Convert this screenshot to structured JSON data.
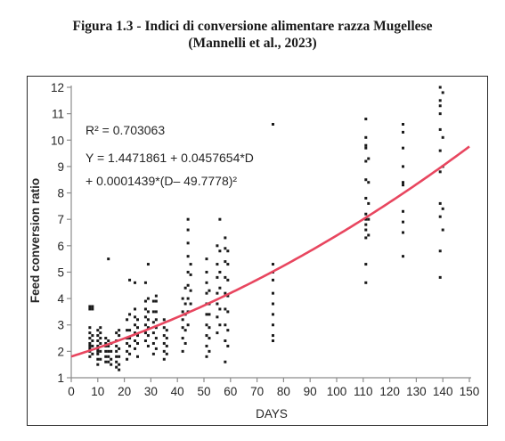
{
  "caption": {
    "line1": "Figura 1.3 - Indici di conversione alimentare razza Mugellese",
    "line2": "(Mannelli et al., 2023)"
  },
  "chart_data": {
    "type": "scatter",
    "title": "",
    "xlabel": "DAYS",
    "ylabel": "Feed conversion ratio",
    "xlim": [
      0,
      150
    ],
    "ylim": [
      1,
      12
    ],
    "xticks": [
      0,
      10,
      20,
      30,
      40,
      50,
      60,
      70,
      80,
      90,
      100,
      110,
      120,
      130,
      140,
      150
    ],
    "yticks": [
      1,
      2,
      3,
      4,
      5,
      6,
      7,
      8,
      9,
      10,
      11,
      12
    ],
    "grid": false,
    "annotations": {
      "r2": "R² = 0.703063",
      "eq1": "Y = 1.4471861 + 0.0457654*D",
      "eq2": "+ 0.0001439*(D– 49.7778)²"
    },
    "fit": {
      "intercept": 1.4471861,
      "slope": 0.0457654,
      "quad": 0.0001439,
      "center": 49.7778,
      "color": "#e8465f"
    },
    "point_color": "#1a1a1a",
    "points": [
      {
        "x": 7,
        "values": [
          1.8,
          2.0,
          2.1,
          2.2,
          2.3,
          2.5,
          2.7,
          2.9,
          3.6,
          3.7
        ]
      },
      {
        "x": 8,
        "values": [
          1.9,
          2.2,
          2.4,
          2.6,
          3.6,
          3.7
        ]
      },
      {
        "x": 10,
        "values": [
          1.5,
          1.7,
          1.9,
          2.0,
          2.1,
          2.2,
          2.4,
          2.6,
          2.8
        ]
      },
      {
        "x": 11,
        "values": [
          1.7,
          2.0,
          2.3,
          2.5,
          2.7,
          2.9
        ]
      },
      {
        "x": 13,
        "values": [
          1.6,
          1.8,
          2.0,
          2.2,
          2.3,
          2.5
        ]
      },
      {
        "x": 14,
        "values": [
          1.6,
          1.8,
          2.0,
          2.2,
          2.4,
          5.5
        ]
      },
      {
        "x": 15,
        "values": [
          1.5,
          1.7,
          2.0,
          2.3
        ]
      },
      {
        "x": 17,
        "values": [
          1.4,
          1.6,
          1.8,
          2.0,
          2.2,
          2.4,
          2.7
        ]
      },
      {
        "x": 18,
        "values": [
          1.3,
          1.5,
          1.8,
          2.1,
          2.6,
          2.8
        ]
      },
      {
        "x": 21,
        "values": [
          1.7,
          2.0,
          2.3,
          2.5,
          2.8,
          3.2
        ]
      },
      {
        "x": 22,
        "values": [
          1.9,
          2.2,
          2.5,
          2.8,
          3.4,
          4.7
        ]
      },
      {
        "x": 24,
        "values": [
          2.1,
          2.4,
          2.7,
          3.0,
          3.3,
          3.6,
          4.6
        ]
      },
      {
        "x": 25,
        "values": [
          1.8,
          2.3,
          2.6,
          2.9,
          3.2
        ]
      },
      {
        "x": 28,
        "values": [
          2.4,
          2.7,
          3.0,
          3.3,
          3.6,
          3.9,
          4.6
        ]
      },
      {
        "x": 29,
        "values": [
          2.2,
          2.6,
          2.9,
          3.2,
          3.5,
          4.0,
          5.3
        ]
      },
      {
        "x": 31,
        "values": [
          1.9,
          2.3,
          2.7,
          3.1,
          3.5,
          3.9
        ]
      },
      {
        "x": 32,
        "values": [
          2.1,
          2.5,
          2.9,
          3.2,
          3.5,
          3.9,
          4.1
        ]
      },
      {
        "x": 35,
        "values": [
          1.7,
          2.0,
          2.3,
          2.6,
          2.9,
          3.2
        ]
      },
      {
        "x": 36,
        "values": [
          1.9,
          2.2,
          2.5,
          2.8
        ]
      },
      {
        "x": 42,
        "values": [
          2.0,
          2.5,
          2.9,
          3.2,
          3.5,
          4.0
        ]
      },
      {
        "x": 43,
        "values": [
          2.3,
          2.8,
          3.4,
          3.8,
          4.4
        ]
      },
      {
        "x": 44,
        "values": [
          3.0,
          3.5,
          4.0,
          4.5,
          5.0,
          5.6,
          6.1,
          6.6,
          7.0
        ]
      },
      {
        "x": 45,
        "values": [
          3.8,
          4.3,
          4.9,
          5.3
        ]
      },
      {
        "x": 51,
        "values": [
          1.8,
          2.2,
          2.6,
          3.0,
          3.4,
          3.8,
          4.2,
          4.6,
          5.0,
          5.5
        ]
      },
      {
        "x": 52,
        "values": [
          2.0,
          2.5,
          2.9,
          3.4,
          3.8,
          4.3
        ]
      },
      {
        "x": 55,
        "values": [
          2.7,
          3.3,
          3.8,
          4.2,
          4.8,
          5.3,
          6.0
        ]
      },
      {
        "x": 56,
        "values": [
          3.0,
          3.6,
          4.4,
          5.0,
          5.8,
          7.0
        ]
      },
      {
        "x": 58,
        "values": [
          1.6,
          2.4,
          3.0,
          3.6,
          4.2,
          4.8,
          5.4,
          5.9,
          6.3
        ]
      },
      {
        "x": 59,
        "values": [
          2.2,
          2.8,
          3.5,
          4.1,
          4.7,
          5.3,
          5.8
        ]
      },
      {
        "x": 76,
        "values": [
          2.4,
          2.6,
          3.0,
          3.4,
          3.8,
          4.2,
          4.7,
          5.0,
          5.3,
          10.6
        ]
      },
      {
        "x": 111,
        "values": [
          4.6,
          5.3,
          6.3,
          6.6,
          6.8,
          7.0,
          7.2,
          7.8,
          8.5,
          9.2,
          9.7,
          9.8,
          10.1,
          10.8
        ]
      },
      {
        "x": 112,
        "values": [
          6.4,
          7.0,
          7.6,
          8.4,
          9.3
        ]
      },
      {
        "x": 125,
        "values": [
          5.6,
          6.5,
          6.9,
          7.3,
          8.3,
          8.4,
          9.0,
          9.7,
          10.3,
          10.6
        ]
      },
      {
        "x": 139,
        "values": [
          4.8,
          5.8,
          7.1,
          7.6,
          8.8,
          9.6,
          10.4,
          11.0,
          11.3,
          11.5,
          12.0
        ]
      },
      {
        "x": 140,
        "values": [
          6.6,
          7.4,
          9.0,
          10.1,
          11.8
        ]
      }
    ]
  }
}
